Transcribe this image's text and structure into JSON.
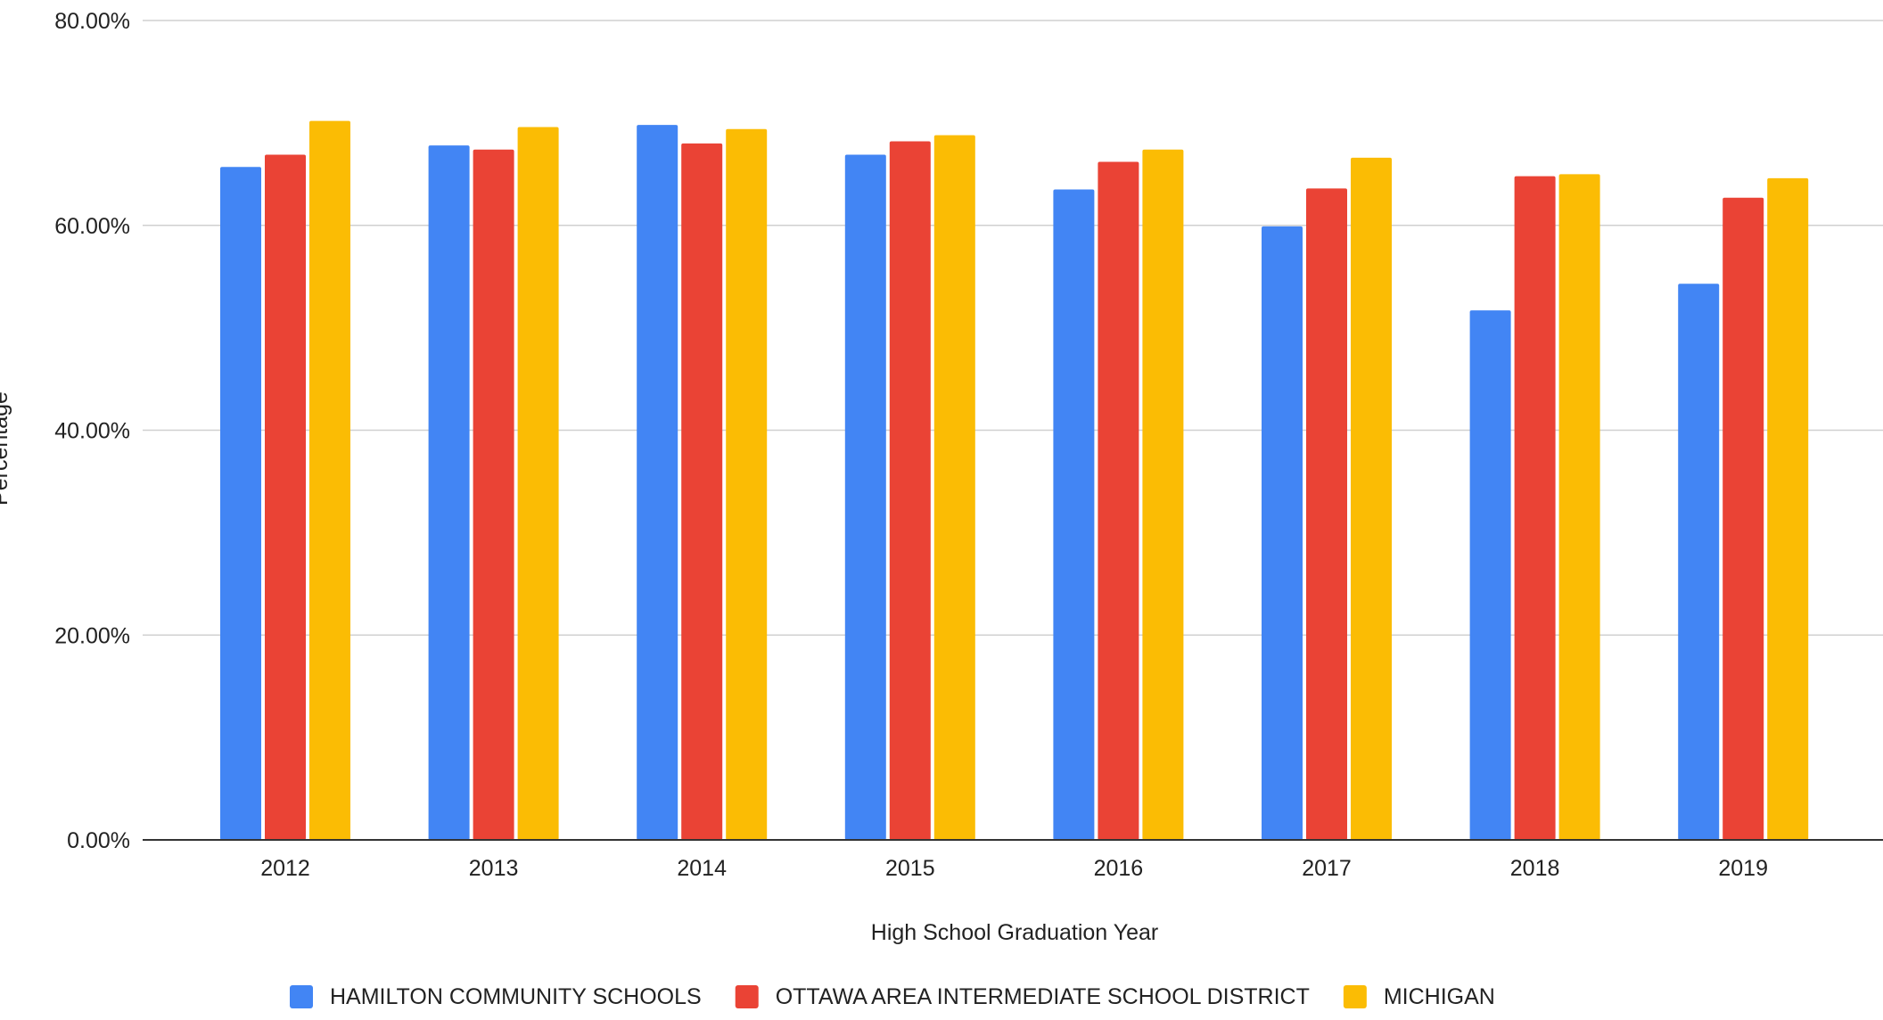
{
  "chart_data": {
    "type": "bar",
    "xlabel": "High School Graduation Year",
    "ylabel": "Percentage",
    "ylim": [
      0,
      0.8
    ],
    "y_ticks": [
      0,
      0.2,
      0.4,
      0.6,
      0.8
    ],
    "y_tick_labels": [
      "0.00%",
      "20.00%",
      "40.00%",
      "60.00%",
      "80.00%"
    ],
    "grid": true,
    "legend_position": "bottom",
    "categories": [
      "2012",
      "2013",
      "2014",
      "2015",
      "2016",
      "2017",
      "2018",
      "2019"
    ],
    "series": [
      {
        "name": "HAMILTON COMMUNITY SCHOOLS",
        "color": "#4285F4",
        "values": [
          0.657,
          0.678,
          0.698,
          0.669,
          0.635,
          0.599,
          0.517,
          0.543
        ]
      },
      {
        "name": "OTTAWA AREA INTERMEDIATE SCHOOL DISTRICT",
        "color": "#EA4335",
        "values": [
          0.669,
          0.674,
          0.68,
          0.682,
          0.662,
          0.636,
          0.648,
          0.627
        ]
      },
      {
        "name": "MICHIGAN",
        "color": "#FBBC04",
        "values": [
          0.702,
          0.696,
          0.694,
          0.688,
          0.674,
          0.666,
          0.65,
          0.646
        ]
      }
    ]
  }
}
